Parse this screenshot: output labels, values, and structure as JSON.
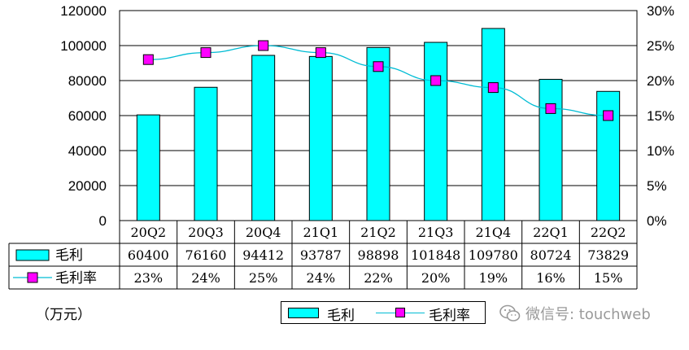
{
  "chart_data": {
    "type": "bar+line",
    "categories": [
      "20Q2",
      "20Q3",
      "20Q4",
      "21Q1",
      "21Q2",
      "21Q3",
      "21Q4",
      "22Q1",
      "22Q2"
    ],
    "series": [
      {
        "name": "毛利",
        "type": "bar",
        "axis": "left",
        "values": [
          60400,
          76160,
          94412,
          93787,
          98898,
          101848,
          109780,
          80724,
          73829
        ],
        "color": "#00ffff"
      },
      {
        "name": "毛利率",
        "type": "line",
        "axis": "right",
        "values": [
          23,
          24,
          25,
          24,
          22,
          20,
          19,
          16,
          15
        ],
        "color": "#ff00ff",
        "line_color": "#00bcd4"
      }
    ],
    "table_labels": {
      "bars": [
        "60400",
        "76160",
        "94412",
        "93787",
        "98898",
        "101848",
        "109780",
        "80724",
        "73829"
      ],
      "line": [
        "23%",
        "24%",
        "25%",
        "24%",
        "22%",
        "20%",
        "19%",
        "16%",
        "15%"
      ]
    },
    "ylim_left": [
      0,
      120000
    ],
    "yticks_left": [
      "0",
      "20000",
      "40000",
      "60000",
      "80000",
      "100000",
      "120000"
    ],
    "ylim_right": [
      0,
      30
    ],
    "yticks_right": [
      "0%",
      "5%",
      "10%",
      "15%",
      "20%",
      "25%",
      "30%"
    ],
    "grid": true,
    "legend_position": "bottom"
  },
  "unit_label": "（万元）",
  "legend": {
    "bar_label": "毛利",
    "line_label": "毛利率"
  },
  "watermark": "微信号: touchweb"
}
